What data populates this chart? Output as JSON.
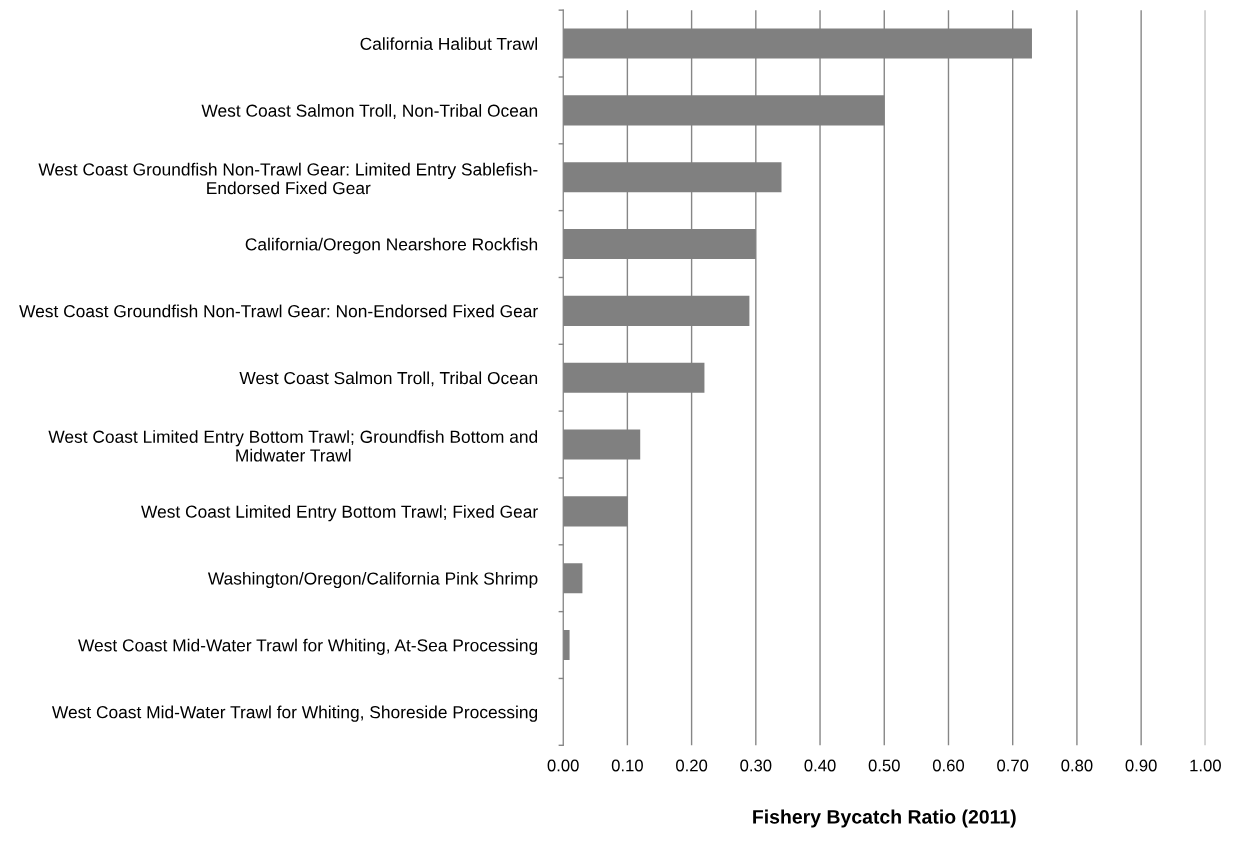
{
  "chart_data": {
    "type": "bar",
    "orientation": "horizontal",
    "xlabel": "Fishery Bycatch Ratio (2011)",
    "categories": [
      "California Halibut Trawl",
      "West Coast Salmon Troll, Non-Tribal Ocean",
      "West Coast Groundfish Non-Trawl Gear: Limited Entry Sablefish-\nEndorsed Fixed Gear",
      "California/Oregon Nearshore Rockfish",
      "West Coast Groundfish Non-Trawl Gear: Non-Endorsed Fixed Gear",
      "West Coast Salmon Troll, Tribal Ocean",
      "West Coast Limited Entry Bottom Trawl; Groundfish Bottom and\nMidwater Trawl",
      "West Coast Limited Entry Bottom Trawl; Fixed Gear",
      "Washington/Oregon/California Pink Shrimp",
      "West Coast Mid-Water Trawl for Whiting, At-Sea Processing",
      "West Coast Mid-Water Trawl for Whiting, Shoreside Processing"
    ],
    "values": [
      0.73,
      0.5,
      0.34,
      0.3,
      0.29,
      0.22,
      0.12,
      0.1,
      0.03,
      0.01,
      0
    ],
    "color": "#808080",
    "xlim": [
      0,
      1
    ],
    "xticks": [
      {
        "value": 0,
        "label": "0.00"
      },
      {
        "value": 0.1,
        "label": "0.10"
      },
      {
        "value": 0.2,
        "label": "0.20"
      },
      {
        "value": 0.3,
        "label": "0.30"
      },
      {
        "value": 0.4,
        "label": "0.40"
      },
      {
        "value": 0.5,
        "label": "0.50"
      },
      {
        "value": 0.6,
        "label": "0.60"
      },
      {
        "value": 0.7,
        "label": "0.70"
      },
      {
        "value": 0.8,
        "label": "0.80"
      },
      {
        "value": 0.9,
        "label": "0.90"
      },
      {
        "value": 1,
        "label": "1.00"
      }
    ],
    "grid": "x"
  }
}
